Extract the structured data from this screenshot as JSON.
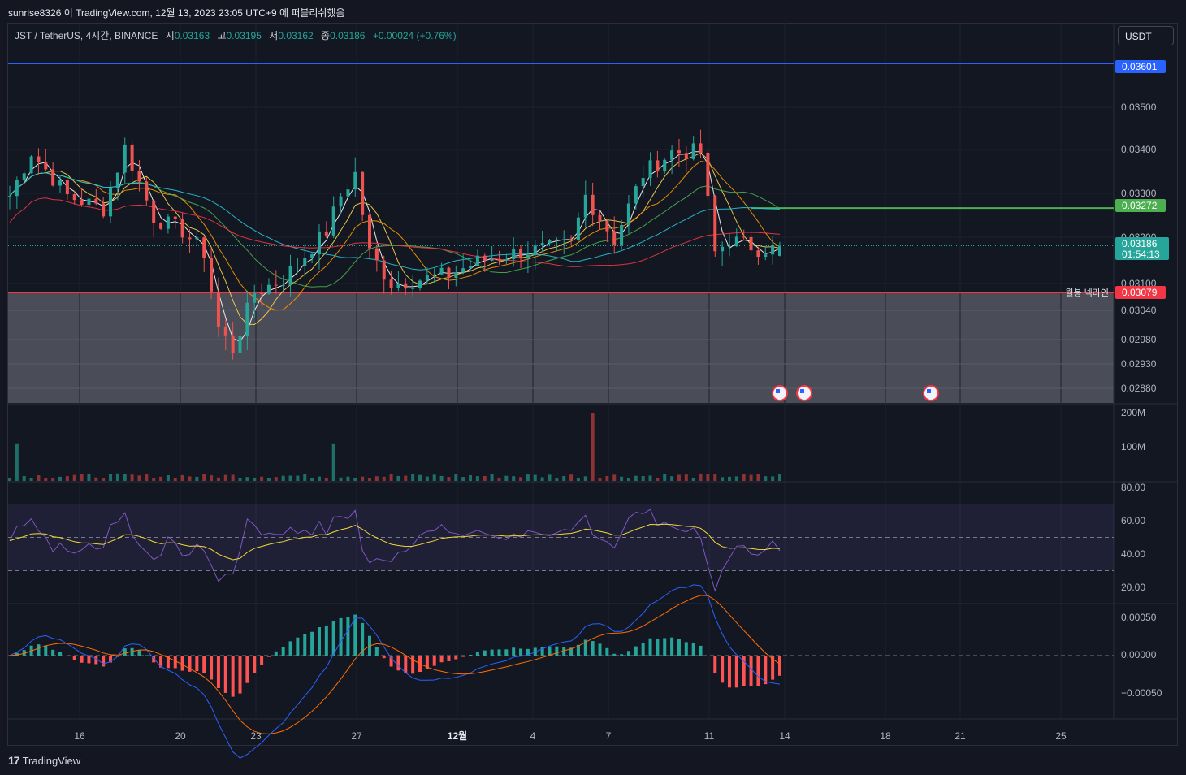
{
  "header": {
    "published_line": "sunrise8326 이 TradingView.com, 12월 13, 2023 23:05 UTC+9 에 퍼블리쉬했음"
  },
  "legend": {
    "symbol": "JST / TetherUS, 4시간, BINANCE",
    "open_label": "시",
    "open": "0.03163",
    "high_label": "고",
    "high": "0.03195",
    "low_label": "저",
    "low": "0.03162",
    "close_label": "종",
    "close": "0.03186",
    "change": "+0.00024 (+0.76%)"
  },
  "currency_button": "USDT",
  "footer": {
    "brand": "TradingView",
    "logo_mark": "17"
  },
  "colors": {
    "background": "#131722",
    "up": "#26a69a",
    "down": "#ef5350",
    "resistance_line": "#2962ff",
    "support_line": "#4caf50",
    "neckline": "#f23645",
    "rsi": "#7e57c2",
    "rsi_ma": "#f0d93a",
    "macd": "#2962ff",
    "signal": "#ff6d00"
  },
  "price_axis": {
    "ticks": [
      "0.03500",
      "0.03400",
      "0.03300",
      "0.03200",
      "0.03100",
      "0.03040",
      "0.02980",
      "0.02930",
      "0.02880"
    ],
    "labels": [
      {
        "text": "0.03601",
        "color": "#2962ff"
      },
      {
        "text": "0.03272",
        "color": "#4caf50"
      },
      {
        "text": "0.03186",
        "subtext": "01:54:13",
        "color": "#26a69a"
      },
      {
        "text": "0.03079",
        "color": "#f23645"
      }
    ],
    "neckline_name": "월봉 넥라인"
  },
  "volume_axis": {
    "ticks": [
      "200M",
      "100M"
    ]
  },
  "rsi_axis": {
    "ticks": [
      "80.00",
      "60.00",
      "40.00",
      "20.00"
    ]
  },
  "macd_axis": {
    "ticks": [
      "0.00050",
      "0.00000",
      "−0.00050"
    ]
  },
  "time_axis": {
    "ticks": [
      "16",
      "20",
      "23",
      "27",
      "12월",
      "4",
      "7",
      "11",
      "14",
      "18",
      "21",
      "25"
    ]
  },
  "chart_data": {
    "type": "candlestick",
    "symbol": "JST/USDT",
    "timeframe": "4h",
    "ohlc_last": {
      "open": 0.03163,
      "high": 0.03195,
      "low": 0.03162,
      "close": 0.03186
    },
    "x_days": [
      "16",
      "20",
      "23",
      "27",
      "12월",
      "4",
      "7",
      "11",
      "14"
    ],
    "close_path": [
      [
        0,
        0.033
      ],
      [
        3,
        0.034
      ],
      [
        8,
        0.033
      ],
      [
        13,
        0.0327
      ],
      [
        16,
        0.0341
      ],
      [
        20,
        0.0325
      ],
      [
        24,
        0.0322
      ],
      [
        27,
        0.0317
      ],
      [
        29,
        0.03
      ],
      [
        31,
        0.0295
      ],
      [
        34,
        0.0308
      ],
      [
        38,
        0.0311
      ],
      [
        44,
        0.0322
      ],
      [
        46,
        0.033
      ],
      [
        48,
        0.0335
      ],
      [
        50,
        0.0317
      ],
      [
        53,
        0.031
      ],
      [
        57,
        0.0311
      ],
      [
        61,
        0.0312
      ],
      [
        65,
        0.0315
      ],
      [
        70,
        0.0317
      ],
      [
        75,
        0.0318
      ],
      [
        78,
        0.0319
      ],
      [
        80,
        0.033
      ],
      [
        84,
        0.032
      ],
      [
        88,
        0.0335
      ],
      [
        92,
        0.034
      ],
      [
        96,
        0.034
      ],
      [
        98,
        0.0317
      ],
      [
        100,
        0.032
      ],
      [
        104,
        0.0318
      ],
      [
        107,
        0.0318
      ]
    ],
    "horizontal_levels": [
      {
        "price": 0.03601,
        "color": "#2962ff"
      },
      {
        "price": 0.03272,
        "color": "#4caf50"
      },
      {
        "price": 0.03079,
        "name": "월봉 넥라인",
        "color": "#f23645"
      }
    ],
    "zone": {
      "from": 0.03079,
      "to": 0.0285
    },
    "volume_units": "M",
    "volume_peaks": [
      {
        "bar": 1,
        "value": 110
      },
      {
        "bar": 45,
        "value": 110
      },
      {
        "bar": 81,
        "value": 200
      }
    ],
    "rsi": {
      "upper": 70,
      "middle": 50,
      "lower": 30,
      "last": 42
    },
    "macd": {
      "last_macd": -0.0003,
      "last_signal": -0.0002
    }
  }
}
